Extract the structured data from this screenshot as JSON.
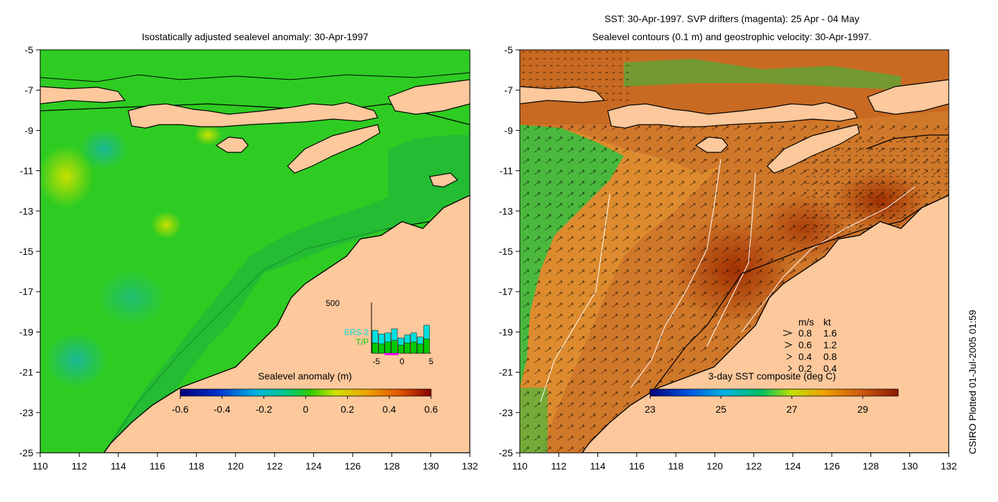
{
  "left_panel": {
    "title": "Isostatically adjusted sealevel anomaly: 30-Apr-1997",
    "colorbar": {
      "title": "Sealevel anomaly (m)",
      "ticks": [
        "-0.6",
        "-0.4",
        "-0.2",
        "0",
        "0.2",
        "0.4",
        "0.6"
      ],
      "range": [
        -0.6,
        0.6
      ]
    },
    "inset_hist": {
      "ymax_label": "500",
      "labels": [
        "ERS-2",
        "T/P"
      ],
      "xticks": [
        "-5",
        "0",
        "5"
      ],
      "ers2_color": "#00e0e0",
      "tp_color": "#00cc00"
    }
  },
  "right_panel": {
    "title_line1": "SST: 30-Apr-1997. SVP drifters (magenta): 25 Apr - 04 May",
    "title_line2": "Sealevel contours (0.1 m) and geostrophic velocity: 30-Apr-1997.",
    "colorbar": {
      "title": "3-day SST composite (deg C)",
      "ticks": [
        "23",
        "25",
        "27",
        "29"
      ],
      "range": [
        23,
        30
      ]
    },
    "velocity_key": {
      "header_ms": "m/s",
      "header_kt": "kt",
      "rows": [
        {
          "ms": "0.8",
          "kt": "1.6"
        },
        {
          "ms": "0.6",
          "kt": "1.2"
        },
        {
          "ms": "0.4",
          "kt": "0.8"
        },
        {
          "ms": "0.2",
          "kt": "0.4"
        }
      ]
    }
  },
  "axes": {
    "lat_ticks": [
      "-5",
      "-7",
      "-9",
      "-11",
      "-13",
      "-15",
      "-17",
      "-19",
      "-21",
      "-23",
      "-25"
    ],
    "lon_ticks": [
      "110",
      "112",
      "114",
      "116",
      "118",
      "120",
      "122",
      "124",
      "126",
      "128",
      "130",
      "132"
    ],
    "lat_range": [
      -25,
      -5
    ],
    "lon_range": [
      110,
      132
    ]
  },
  "credit": "CSIRO Plotted 01-Jul-2005 01:59",
  "colors": {
    "land": "#fcc89c",
    "ocean_green": "#22cc22",
    "sst_warm": "#c8641e"
  }
}
